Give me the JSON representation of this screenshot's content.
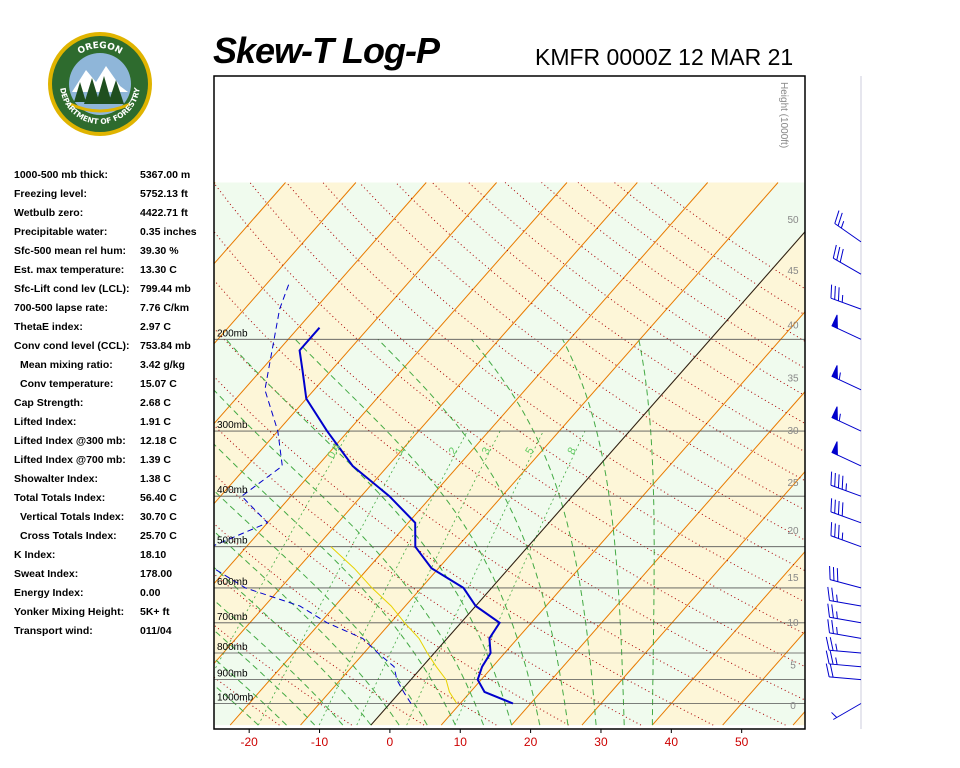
{
  "header": {
    "title": "Skew-T Log-P",
    "station_line": "KMFR 0000Z 12 MAR 21"
  },
  "logo": {
    "top_text": "OREGON",
    "bottom_text": "DEPARTMENT OF FORESTRY",
    "colors": {
      "ring": "#2e6b2e",
      "gold": "#e0b400",
      "tree": "#1f4f1f",
      "mountain": "#ffffff",
      "sky": "#8fb6d9"
    }
  },
  "indices": [
    {
      "label": "1000-500 mb thick:",
      "value": "5367.00 m",
      "indent": false
    },
    {
      "label": "Freezing level:",
      "value": "5752.13 ft",
      "indent": false
    },
    {
      "label": "Wetbulb zero:",
      "value": "4422.71 ft",
      "indent": false
    },
    {
      "label": "Precipitable water:",
      "value": "0.35 inches",
      "indent": false
    },
    {
      "label": "Sfc-500 mean rel hum:",
      "value": "39.30 %",
      "indent": false
    },
    {
      "label": "Est. max temperature:",
      "value": "13.30 C",
      "indent": false
    },
    {
      "label": "Sfc-Lift cond lev (LCL):",
      "value": "799.44 mb",
      "indent": false
    },
    {
      "label": "700-500 lapse rate:",
      "value": "7.76 C/km",
      "indent": false
    },
    {
      "label": "ThetaE index:",
      "value": "2.97 C",
      "indent": false
    },
    {
      "label": "Conv cond level (CCL):",
      "value": "753.84 mb",
      "indent": false
    },
    {
      "label": "Mean mixing ratio:",
      "value": "3.42 g/kg",
      "indent": true
    },
    {
      "label": "Conv temperature:",
      "value": "15.07 C",
      "indent": true
    },
    {
      "label": "Cap Strength:",
      "value": "2.68 C",
      "indent": false
    },
    {
      "label": "Lifted Index:",
      "value": "1.91 C",
      "indent": false
    },
    {
      "label": "Lifted Index @300 mb:",
      "value": "12.18 C",
      "indent": false
    },
    {
      "label": "Lifted Index @700 mb:",
      "value": "1.39 C",
      "indent": false
    },
    {
      "label": "Showalter Index:",
      "value": "1.38 C",
      "indent": false
    },
    {
      "label": "Total Totals Index:",
      "value": "56.40 C",
      "indent": false
    },
    {
      "label": "Vertical Totals Index:",
      "value": "30.70 C",
      "indent": true
    },
    {
      "label": "Cross Totals Index:",
      "value": "25.70 C",
      "indent": true
    },
    {
      "label": "K Index:",
      "value": "18.10",
      "indent": false
    },
    {
      "label": "Sweat Index:",
      "value": "178.00",
      "indent": false
    },
    {
      "label": "Energy Index:",
      "value": "0.00",
      "indent": false
    },
    {
      "label": "Yonker Mixing Height:",
      "value": "5K+ ft",
      "indent": false
    },
    {
      "label": "Transport wind:",
      "value": "011/04",
      "indent": false
    }
  ],
  "chart_data": {
    "type": "line",
    "title": "Skew-T Log-P",
    "subtitle": "KMFR 0000Z 12 MAR 21",
    "x_unit": "C",
    "xlim": [
      -25,
      59
    ],
    "x_ticks": [
      -20,
      -10,
      0,
      10,
      20,
      30,
      40,
      50
    ],
    "y_scale": "log-pressure",
    "ylim_mb": [
      1050,
      150
    ],
    "pressure_levels": [
      {
        "p": 1000,
        "label": "1000mb"
      },
      {
        "p": 900,
        "label": "900mb"
      },
      {
        "p": 800,
        "label": "800mb"
      },
      {
        "p": 700,
        "label": "700mb"
      },
      {
        "p": 600,
        "label": "600mb"
      },
      {
        "p": 500,
        "label": "500mb"
      },
      {
        "p": 400,
        "label": "400mb"
      },
      {
        "p": 300,
        "label": "300mb"
      },
      {
        "p": 200,
        "label": "200mb"
      }
    ],
    "height_axis": {
      "label": "Height (1000ft)",
      "ticks": [
        {
          "v": "0",
          "p": 1010
        },
        {
          "v": "5",
          "p": 846
        },
        {
          "v": "10",
          "p": 700
        },
        {
          "v": "15",
          "p": 574
        },
        {
          "v": "20",
          "p": 467
        },
        {
          "v": "25",
          "p": 377
        },
        {
          "v": "30",
          "p": 300
        },
        {
          "v": "35",
          "p": 238
        },
        {
          "v": "40",
          "p": 188
        },
        {
          "v": "45",
          "p": 148
        },
        {
          "v": "50",
          "p": 118
        }
      ]
    },
    "mixing_ratio_labels": [
      {
        "text": "0.4",
        "w": 0.4
      },
      {
        "text": "1",
        "w": 1
      },
      {
        "text": "2",
        "w": 2
      },
      {
        "text": "3",
        "w": 3
      },
      {
        "text": "5",
        "w": 5
      },
      {
        "text": "8",
        "w": 8
      }
    ],
    "temperature": {
      "color": "#0000cc",
      "points": [
        [
          1000,
          17.5
        ],
        [
          950,
          12
        ],
        [
          900,
          9.5
        ],
        [
          850,
          8.5
        ],
        [
          800,
          8
        ],
        [
          750,
          6
        ],
        [
          700,
          5.5
        ],
        [
          650,
          0
        ],
        [
          600,
          -4
        ],
        [
          550,
          -11
        ],
        [
          500,
          -16
        ],
        [
          450,
          -19
        ],
        [
          400,
          -26
        ],
        [
          350,
          -35
        ],
        [
          300,
          -43
        ],
        [
          260,
          -50
        ],
        [
          230,
          -54
        ],
        [
          210,
          -57
        ],
        [
          190,
          -57
        ]
      ]
    },
    "dewpoint": {
      "color": "#0000cc",
      "points": [
        [
          1000,
          3
        ],
        [
          950,
          0.5
        ],
        [
          900,
          -2
        ],
        [
          850,
          -4
        ],
        [
          800,
          -8
        ],
        [
          750,
          -12
        ],
        [
          700,
          -19
        ],
        [
          650,
          -25
        ],
        [
          600,
          -35
        ],
        [
          550,
          -42
        ],
        [
          500,
          -45
        ],
        [
          450,
          -40
        ],
        [
          400,
          -47
        ],
        [
          350,
          -45
        ],
        [
          300,
          -50
        ],
        [
          250,
          -57
        ],
        [
          200,
          -62
        ],
        [
          175,
          -65
        ],
        [
          155,
          -67
        ]
      ]
    },
    "parcel": {
      "color": "#e8d200",
      "points": [
        [
          1000,
          9.5
        ],
        [
          950,
          7
        ],
        [
          900,
          5
        ],
        [
          850,
          2
        ],
        [
          800,
          -1
        ],
        [
          750,
          -4
        ],
        [
          700,
          -8
        ],
        [
          650,
          -12
        ],
        [
          600,
          -17
        ],
        [
          550,
          -22
        ],
        [
          500,
          -28
        ]
      ]
    },
    "wind_barbs": [
      {
        "p": 1000,
        "dir": 240,
        "kt": 5
      },
      {
        "p": 900,
        "dir": 275,
        "kt": 20
      },
      {
        "p": 850,
        "dir": 275,
        "kt": 25
      },
      {
        "p": 800,
        "dir": 275,
        "kt": 25
      },
      {
        "p": 750,
        "dir": 280,
        "kt": 25
      },
      {
        "p": 700,
        "dir": 280,
        "kt": 25
      },
      {
        "p": 650,
        "dir": 280,
        "kt": 25
      },
      {
        "p": 600,
        "dir": 285,
        "kt": 30
      },
      {
        "p": 500,
        "dir": 290,
        "kt": 35
      },
      {
        "p": 450,
        "dir": 290,
        "kt": 40
      },
      {
        "p": 400,
        "dir": 290,
        "kt": 45
      },
      {
        "p": 350,
        "dir": 295,
        "kt": 50
      },
      {
        "p": 300,
        "dir": 295,
        "kt": 55
      },
      {
        "p": 250,
        "dir": 295,
        "kt": 55
      },
      {
        "p": 200,
        "dir": 295,
        "kt": 50
      },
      {
        "p": 175,
        "dir": 290,
        "kt": 35
      },
      {
        "p": 150,
        "dir": 300,
        "kt": 30
      },
      {
        "p": 130,
        "dir": 305,
        "kt": 25
      }
    ],
    "colors": {
      "isotherm": "#e87a00",
      "dry_adiabat": "#aa0000",
      "moist_adiabat": "#44aa44",
      "background_light": "#f0fbee",
      "background_warm": "#fdf6d8",
      "barb": "#0000cc"
    },
    "grid": true
  }
}
